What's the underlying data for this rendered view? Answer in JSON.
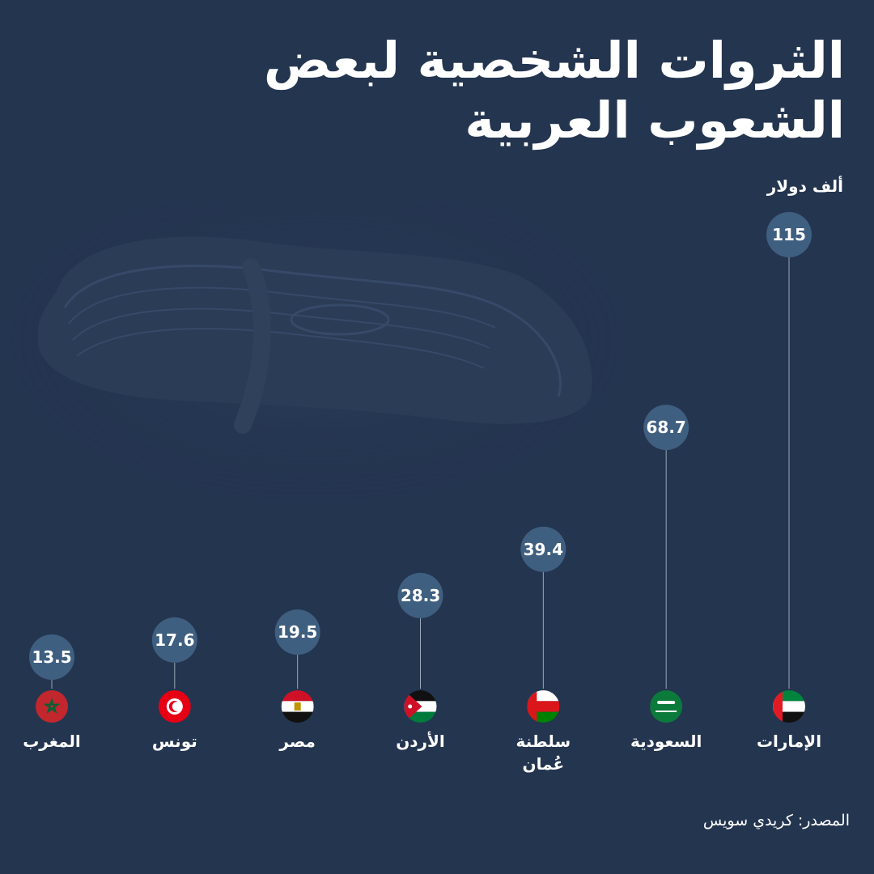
{
  "title": "الثروات الشخصية لبعض الشعوب العربية",
  "unit_label": "ألف دولار",
  "source": "المصدر: كريدي سويس",
  "colors": {
    "background": "#243550",
    "bubble": "#3f5f80",
    "stem": "#9aa8b8",
    "text": "#ffffff"
  },
  "chart_data": {
    "type": "scatter",
    "title": "الثروات الشخصية لبعض الشعوب العربية",
    "ylabel": "ألف دولار",
    "ylim": [
      0,
      115
    ],
    "categories": [
      "الإمارات",
      "السعودية",
      "سلطنة عُمان",
      "الأردن",
      "مصر",
      "تونس",
      "المغرب"
    ],
    "values": [
      115,
      68.7,
      39.4,
      28.3,
      19.5,
      17.6,
      13.5
    ],
    "value_labels": [
      "115",
      "68.7",
      "39.4",
      "28.3",
      "19.5",
      "17.6",
      "13.5"
    ],
    "flags": [
      "uae-flag-icon",
      "saudi-flag-icon",
      "oman-flag-icon",
      "jordan-flag-icon",
      "egypt-flag-icon",
      "tunisia-flag-icon",
      "morocco-flag-icon"
    ],
    "grid": false,
    "legend": "none"
  }
}
